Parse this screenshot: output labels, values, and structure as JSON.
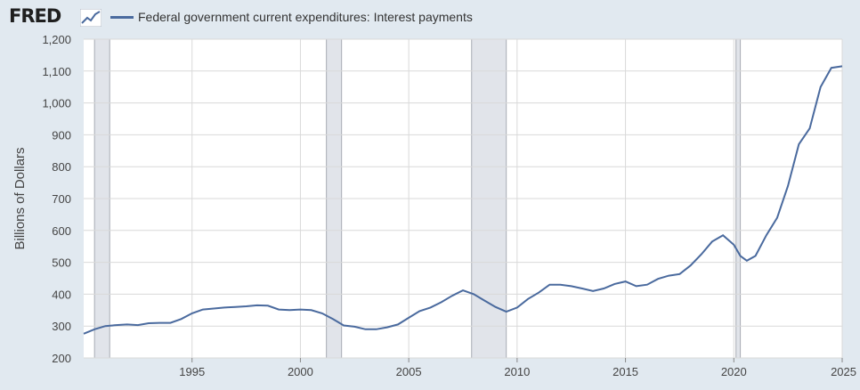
{
  "header": {
    "logo_text": "FRED",
    "logo_icon": "chart-line-icon"
  },
  "colors": {
    "line": "#4a6a9e",
    "recession": "#e1e4ea",
    "plot_bg": "#ffffff",
    "grid": "#d9d9d9",
    "page_bg": "#e1e9f0"
  },
  "chart_data": {
    "type": "line",
    "title": "",
    "xlabel": "",
    "ylabel": "Billions of Dollars",
    "xlim": [
      1990.0,
      2025.0
    ],
    "ylim": [
      200,
      1200
    ],
    "y_ticks": [
      200,
      300,
      400,
      500,
      600,
      700,
      800,
      900,
      1000,
      1100,
      1200
    ],
    "y_tick_labels": [
      "200",
      "300",
      "400",
      "500",
      "600",
      "700",
      "800",
      "900",
      "1,000",
      "1,100",
      "1,200"
    ],
    "x_ticks": [
      1995,
      2000,
      2005,
      2010,
      2015,
      2020,
      2025
    ],
    "x_tick_labels": [
      "1995",
      "2000",
      "2005",
      "2010",
      "2015",
      "2020",
      "2025"
    ],
    "grid": true,
    "legend_position": "top-left",
    "recessions": [
      [
        1990.5,
        1991.2
      ],
      [
        2001.2,
        2001.9
      ],
      [
        2007.9,
        2009.5
      ],
      [
        2020.1,
        2020.3
      ]
    ],
    "series": [
      {
        "name": "Federal government current expenditures: Interest payments",
        "x": [
          1990.0,
          1990.5,
          1991.0,
          1991.5,
          1992.0,
          1992.5,
          1993.0,
          1993.5,
          1994.0,
          1994.5,
          1995.0,
          1995.5,
          1996.0,
          1996.5,
          1997.0,
          1997.5,
          1998.0,
          1998.5,
          1999.0,
          1999.5,
          2000.0,
          2000.5,
          2001.0,
          2001.5,
          2002.0,
          2002.5,
          2003.0,
          2003.5,
          2004.0,
          2004.5,
          2005.0,
          2005.5,
          2006.0,
          2006.5,
          2007.0,
          2007.5,
          2008.0,
          2008.5,
          2009.0,
          2009.5,
          2010.0,
          2010.5,
          2011.0,
          2011.5,
          2012.0,
          2012.5,
          2013.0,
          2013.5,
          2014.0,
          2014.5,
          2015.0,
          2015.5,
          2016.0,
          2016.5,
          2017.0,
          2017.5,
          2018.0,
          2018.5,
          2019.0,
          2019.5,
          2020.0,
          2020.3,
          2020.6,
          2021.0,
          2021.5,
          2022.0,
          2022.5,
          2023.0,
          2023.5,
          2024.0,
          2024.5,
          2025.0
        ],
        "values": [
          276,
          290,
          300,
          303,
          305,
          303,
          309,
          310,
          310,
          322,
          340,
          352,
          355,
          358,
          360,
          362,
          365,
          364,
          352,
          350,
          352,
          350,
          340,
          322,
          302,
          298,
          290,
          290,
          296,
          305,
          326,
          347,
          358,
          375,
          395,
          412,
          400,
          380,
          360,
          345,
          358,
          385,
          405,
          430,
          430,
          425,
          418,
          410,
          418,
          432,
          440,
          425,
          430,
          448,
          458,
          463,
          490,
          525,
          565,
          585,
          555,
          520,
          505,
          520,
          585,
          640,
          740,
          870,
          920,
          1050,
          1110,
          1115
        ]
      }
    ]
  }
}
